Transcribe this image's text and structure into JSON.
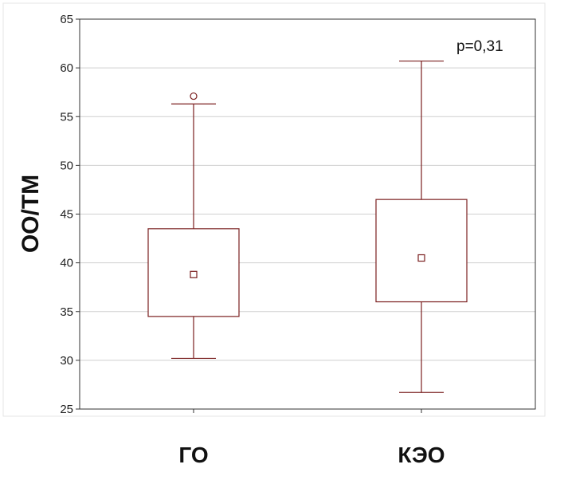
{
  "chart_data": {
    "type": "boxplot",
    "ylabel": "ОО/ТМ",
    "ylim": [
      25,
      65
    ],
    "yticks": [
      25,
      30,
      35,
      40,
      45,
      50,
      55,
      60,
      65
    ],
    "grid": true,
    "annotation": "p=0,31",
    "categories": [
      "ГО",
      "КЭО"
    ],
    "boxes": [
      {
        "category": "ГО",
        "whisker_low": 30.2,
        "q1": 34.5,
        "center": 38.8,
        "q3": 43.5,
        "whisker_high": 56.3,
        "outliers": [
          57.1
        ]
      },
      {
        "category": "КЭО",
        "whisker_low": 26.7,
        "q1": 36.0,
        "center": 40.5,
        "q3": 46.5,
        "whisker_high": 60.7,
        "outliers": []
      }
    ],
    "colors": {
      "box": "#7a1f1f",
      "grid": "#cfcfcf",
      "plot_bg": "#ffffff",
      "frame": "#555555"
    }
  }
}
